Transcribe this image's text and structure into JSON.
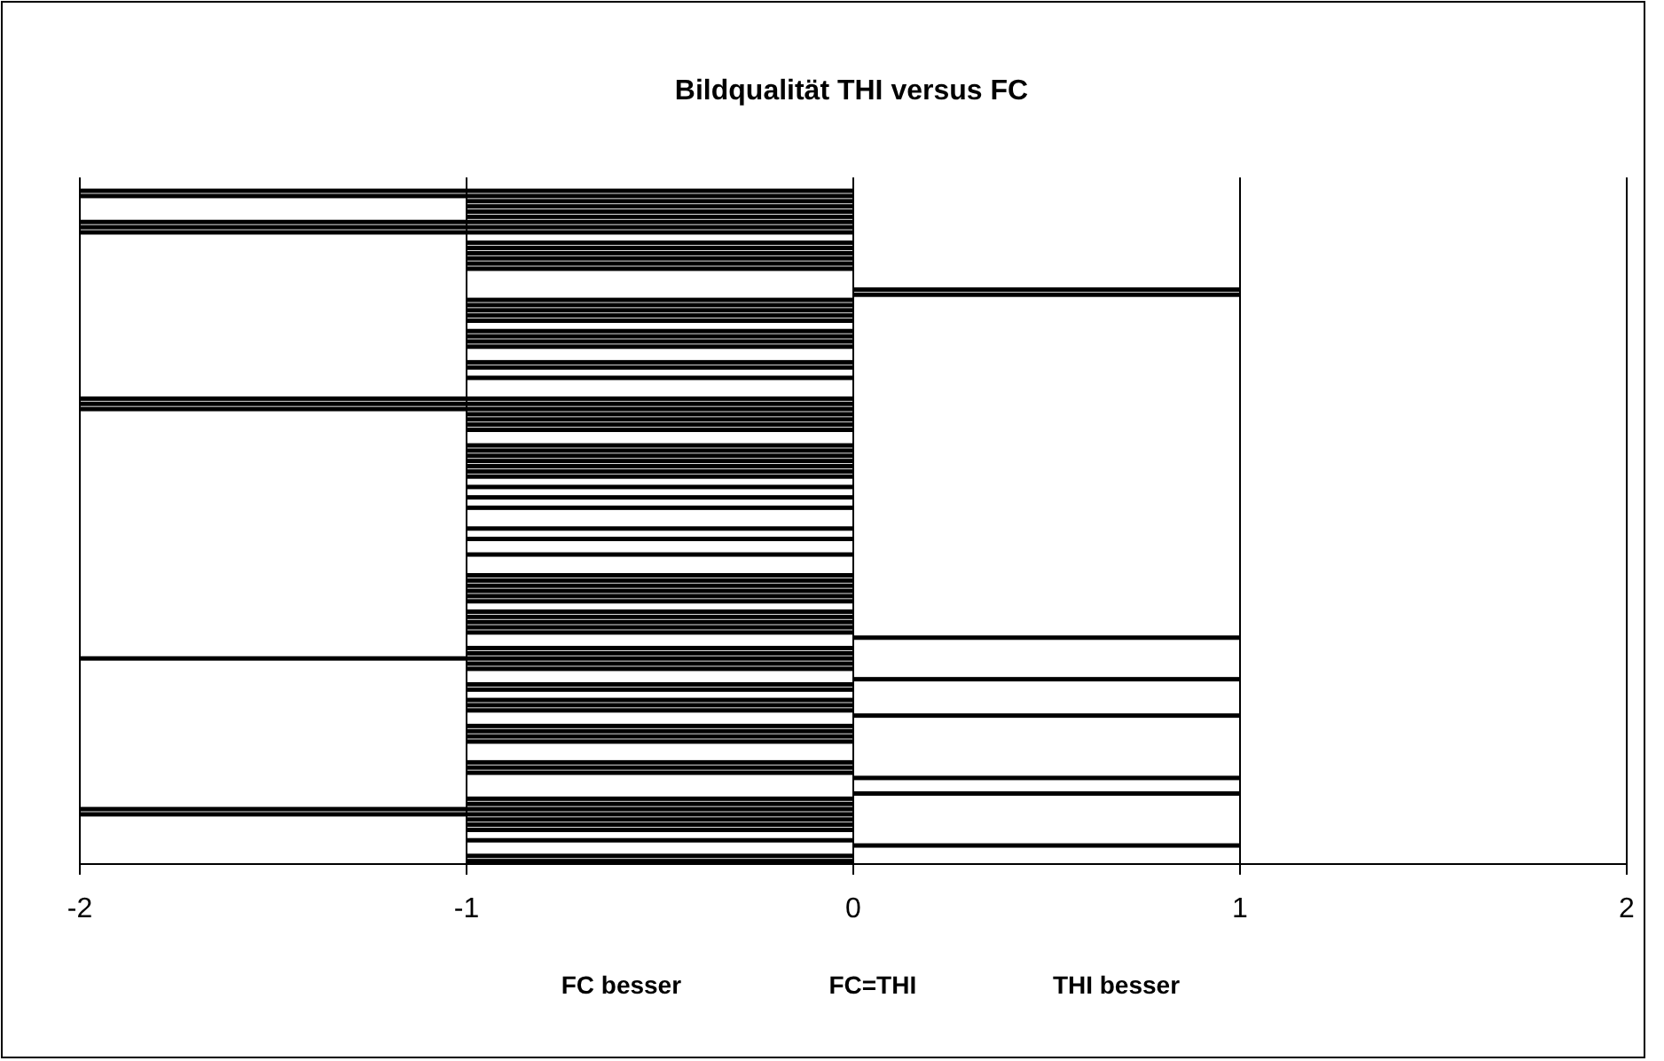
{
  "chart_data": {
    "type": "bar",
    "orientation": "horizontal",
    "title": "Bildqualität THI versus FC",
    "categories": [
      null,
      null,
      null,
      null,
      null,
      null,
      null,
      null,
      null,
      null,
      null,
      null,
      null,
      null,
      null,
      null,
      null,
      null,
      null,
      null,
      null,
      null,
      null,
      null,
      null,
      null,
      null,
      null,
      null,
      null,
      null,
      null,
      null,
      null,
      null,
      null,
      null,
      null,
      null,
      null,
      null,
      null,
      null,
      null,
      null,
      null,
      null,
      null,
      null,
      null,
      null,
      null,
      null,
      null,
      null,
      null,
      null,
      null,
      null,
      null,
      null,
      null,
      null,
      null,
      null,
      null,
      null,
      null,
      null,
      null,
      null,
      null,
      null,
      null,
      null,
      null,
      null,
      null,
      null,
      null,
      null,
      null,
      null,
      null,
      null,
      null,
      null,
      null,
      null,
      null,
      null,
      null,
      null,
      null,
      null,
      null,
      null,
      null,
      null,
      null,
      null,
      null,
      null,
      null,
      null,
      null,
      null,
      null,
      null,
      null,
      null,
      null,
      null,
      null,
      null,
      null,
      null,
      null,
      null,
      null,
      null,
      null,
      null,
      null,
      null,
      null,
      null,
      null,
      null,
      null,
      null,
      null
    ],
    "values": [
      0,
      0,
      -2,
      -2,
      -1,
      -1,
      -1,
      -1,
      -2,
      -2,
      -2,
      0,
      -1,
      -1,
      -1,
      -1,
      -1,
      -1,
      0,
      0,
      0,
      1,
      1,
      -1,
      -1,
      -1,
      -1,
      -1,
      0,
      -1,
      -1,
      -1,
      -1,
      0,
      0,
      -1,
      -1,
      0,
      -1,
      0,
      0,
      0,
      -2,
      -2,
      -2,
      -1,
      -1,
      -1,
      -1,
      0,
      0,
      -1,
      -1,
      -1,
      -1,
      -1,
      -1,
      -1,
      0,
      -1,
      0,
      -1,
      0,
      -1,
      0,
      0,
      0,
      -1,
      0,
      -1,
      0,
      0,
      -1,
      0,
      0,
      0,
      -1,
      -1,
      -1,
      -1,
      -1,
      -1,
      0,
      -1,
      -1,
      -1,
      -1,
      -1,
      1,
      0,
      -1,
      -1,
      -2,
      -1,
      -1,
      0,
      1,
      -1,
      -1,
      0,
      -1,
      -1,
      -1,
      1,
      0,
      -1,
      -1,
      -1,
      -1,
      0,
      0,
      0,
      -1,
      -1,
      -1,
      1,
      0,
      0,
      1,
      -1,
      -1,
      -2,
      -2,
      -1,
      -1,
      -1,
      0,
      -1,
      1,
      0,
      -1,
      -1
    ],
    "color": "#000000",
    "xlim": [
      -2,
      2
    ],
    "xticks": [
      -2,
      -1,
      0,
      1,
      2
    ],
    "grid": "x",
    "annotations": [
      "FC besser",
      "FC=THI",
      "THI besser"
    ]
  }
}
